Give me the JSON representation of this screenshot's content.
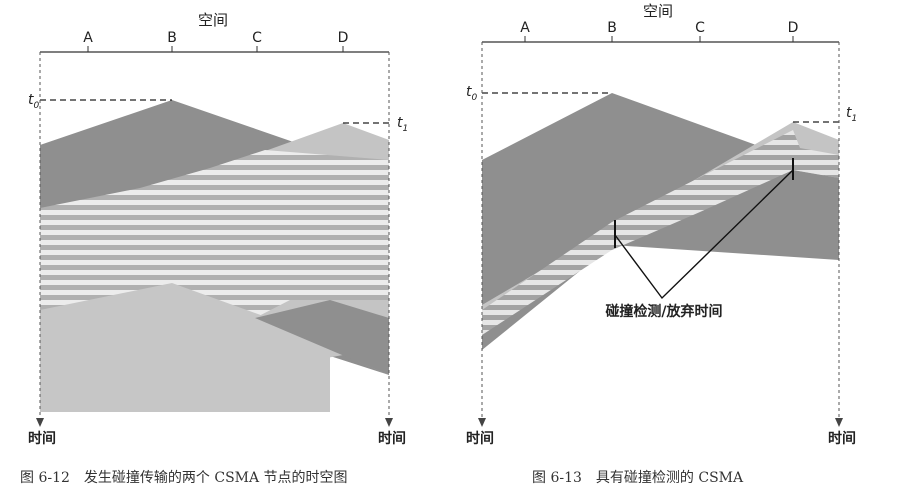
{
  "left_figure": {
    "space_label": "空间",
    "nodes": [
      "A",
      "B",
      "C",
      "D"
    ],
    "t0_label": "t",
    "t0_sub": "0",
    "t1_label": "t",
    "t1_sub": "1",
    "time_left": "时间",
    "time_right": "时间",
    "caption": "图 6-12　发生碰撞传输的两个 CSMA 节点的时空图"
  },
  "right_figure": {
    "space_label": "空间",
    "nodes": [
      "A",
      "B",
      "C",
      "D"
    ],
    "t0_label": "t",
    "t0_sub": "0",
    "t1_label": "t",
    "t1_sub": "1",
    "time_left": "时间",
    "time_right": "时间",
    "annotation": "碰撞检测/放弃时间",
    "caption": "图 6-13　具有碰撞检测的 CSMA"
  },
  "colors": {
    "dark_wave": "#8f8f8f",
    "light_wave": "#c4c4c4",
    "stripe": "#e9e9e9",
    "line": "#333333"
  }
}
